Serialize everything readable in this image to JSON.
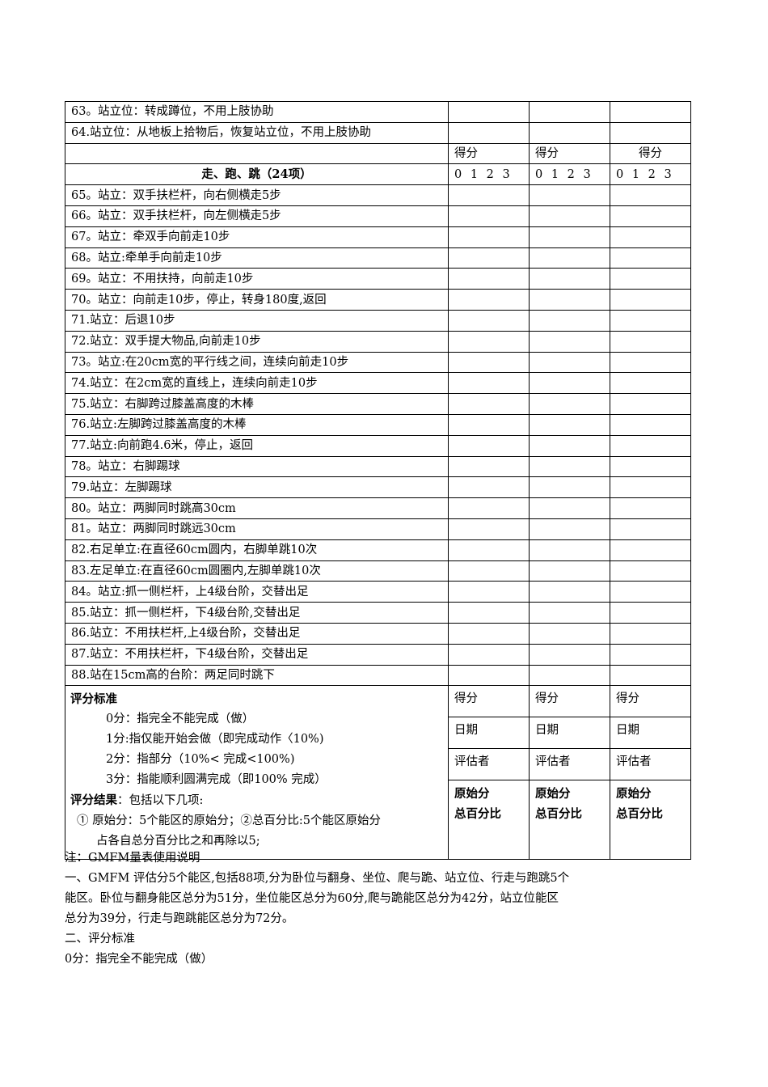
{
  "top_rows": [
    "63。站立位：转成蹲位，不用上肢协助",
    "64.站立位：从地板上拾物后，恢复站立位，不用上肢协助"
  ],
  "score_header": [
    "得分",
    "得分",
    "得分"
  ],
  "section_title": "走、跑、跳（24项）",
  "score_scale": [
    "0 1 2 3",
    "0 1 2 3",
    "0 1 2 3"
  ],
  "items": [
    "65。站立：双手扶栏杆，向右侧横走5步",
    "66。站立：双手扶栏杆，向左侧横走5步",
    "67。站立：牵双手向前走10步",
    "68。站立:牵单手向前走10步",
    "69。站立：不用扶持，向前走10步",
    "70。站立：向前走10步，停止，转身180度,返回",
    "71.站立：后退10步",
    "72.站立：双手提大物品,向前走10步",
    "73。站立:在20cm宽的平行线之间，连续向前走10步",
    "74.站立：在2cm宽的直线上，连续向前走10步",
    "75.站立：右脚跨过膝盖高度的木棒",
    "76.站立:左脚跨过膝盖高度的木棒",
    "77.站立:向前跑4.6米，停止，返回",
    "78。站立：右脚踢球",
    "79.站立：左脚踢球",
    "80。站立：两脚同时跳高30cm",
    "81。站立：两脚同时跳远30cm",
    "82.右足单立:在直径60cm圆内，右脚单跳10次",
    "83.左足单立:在直径60cm圆圈内,左脚单跳10次",
    "84。站立:抓一侧栏杆，上4级台阶，交替出足",
    "85.站立：抓一侧栏杆，下4级台阶,交替出足",
    "86.站立：不用扶栏杆,上4级台阶，交替出足",
    "87.站立：不用扶栏杆，下4级台阶，交替出足",
    "88.站在15cm高的台阶：两足同时跳下"
  ],
  "criteria": {
    "title": "评分标准",
    "lines": [
      "0分：指完全不能完成（做）",
      "1分:指仅能开始会做（即完成动作〈10%)",
      "2分：指部分（10%< 完成<100%)",
      "3分：指能顺利圆满完成（即100% 完成）"
    ],
    "result_label": "评分结果",
    "result_text": "：包括以下几项:",
    "result_line1": "① 原始分：5个能区的原始分；②总百分比:5个能区原始分",
    "result_line2": "占各自总分百分比之和再除以5;"
  },
  "summary_labels": {
    "score": "得分",
    "date": "日期",
    "assessor": "评估者",
    "raw": "原始分",
    "percent": "总百分比"
  },
  "notes": [
    "注：GMFM量表使用说明",
    "一、GMFM 评估分5个能区,包括88项,分为卧位与翻身、坐位、爬与跪、站立位、行走与跑跳5个",
    "能区。卧位与翻身能区总分为51分，坐位能区总分为60分,爬与跪能区总分为42分，站立位能区",
    "总分为39分，行走与跑跳能区总分为72分。",
    "二、评分标准",
    "0分：指完全不能完成（做）"
  ]
}
